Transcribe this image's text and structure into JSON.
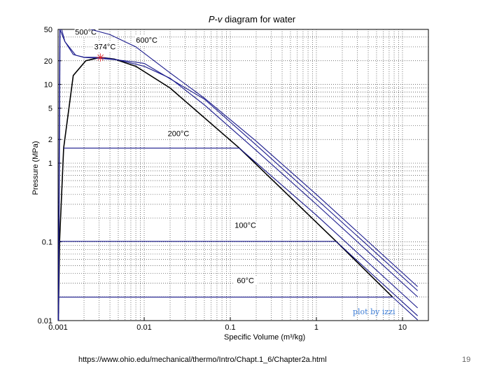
{
  "chart_data": {
    "type": "line",
    "title": "P-v diagram for water",
    "xlabel": "Specific Volume (m³/kg)",
    "ylabel": "Pressure (MPa)",
    "x_scale": "log",
    "y_scale": "log",
    "xlim": [
      0.001,
      20
    ],
    "ylim": [
      0.01,
      50
    ],
    "x_ticks": [
      {
        "value": 0.001,
        "label": "0.001"
      },
      {
        "value": 0.01,
        "label": "0.01"
      },
      {
        "value": 0.1,
        "label": "0.1"
      },
      {
        "value": 1,
        "label": "1"
      },
      {
        "value": 10,
        "label": "10"
      }
    ],
    "y_ticks": [
      {
        "value": 0.01,
        "label": "0.01"
      },
      {
        "value": 0.1,
        "label": "0.1"
      },
      {
        "value": 1,
        "label": "1"
      },
      {
        "value": 2,
        "label": "2"
      },
      {
        "value": 5,
        "label": "5"
      },
      {
        "value": 10,
        "label": "10"
      },
      {
        "value": 20,
        "label": "20"
      },
      {
        "value": 50,
        "label": "50"
      }
    ],
    "grid": true,
    "series": [
      {
        "name": "60°C",
        "x": [
          0.00102,
          7.67,
          15.0
        ],
        "y": [
          0.0199,
          0.0199,
          0.0102
        ],
        "label_at": [
          0.15,
          0.03
        ]
      },
      {
        "name": "100°C",
        "x": [
          0.00104,
          1.694,
          15.0
        ],
        "y": [
          0.1014,
          0.1014,
          0.0115
        ],
        "label_at": [
          0.15,
          0.15
        ]
      },
      {
        "name": "200°C",
        "x": [
          0.00116,
          0.1274,
          1.0,
          15.0
        ],
        "y": [
          1.554,
          1.554,
          0.218,
          0.0145
        ],
        "label_at": [
          0.025,
          2.2
        ]
      },
      {
        "name": "374°C",
        "x": [
          0.00105,
          0.0012,
          0.0016,
          0.002,
          0.00311,
          0.005,
          0.01,
          0.02,
          0.05,
          0.2,
          1.0,
          15.0
        ],
        "y": [
          50,
          35,
          23.5,
          22.2,
          22.06,
          20.5,
          17.0,
          12.0,
          5.5,
          1.45,
          0.3,
          0.02
        ],
        "label_at": [
          0.0035,
          28
        ]
      },
      {
        "name": "500°C",
        "x": [
          0.0011,
          0.0012,
          0.0015,
          0.002,
          0.003,
          0.006,
          0.01,
          0.05,
          0.2,
          1.0,
          15.0
        ],
        "y": [
          50,
          35,
          24,
          22.0,
          21.5,
          20.0,
          18.5,
          6.5,
          1.7,
          0.35,
          0.024
        ],
        "label_at": [
          0.0021,
          43
        ]
      },
      {
        "name": "600°C",
        "x": [
          0.0024,
          0.004,
          0.008,
          0.02,
          0.05,
          0.2,
          1.0,
          15.0
        ],
        "y": [
          50,
          43,
          30,
          14,
          6.7,
          1.9,
          0.4,
          0.027
        ],
        "label_at": [
          0.0107,
          34
        ]
      }
    ],
    "saturation_dome": {
      "x": [
        0.00101,
        0.00104,
        0.00116,
        0.0015,
        0.0021,
        0.00311,
        0.0045,
        0.008,
        0.02,
        0.1274,
        1.694,
        7.67
      ],
      "y": [
        0.0123,
        0.1014,
        1.554,
        13.0,
        20.0,
        22.06,
        21.0,
        17.0,
        9.0,
        1.554,
        0.1014,
        0.0199
      ]
    },
    "critical_point": {
      "x": 0.00311,
      "y": 22.06,
      "marker": "*",
      "color": "#e02020"
    }
  },
  "colors": {
    "curve": "#1a1a8c",
    "dome": "#000000",
    "grid": "#444444",
    "critical": "#e02020",
    "credit": "#3a7bd5"
  },
  "annotations": {
    "credit": "plot by izzi",
    "source": "https://www.ohio.edu/mechanical/thermo/Intro/Chapt.1_6/Chapter2a.html",
    "page_number": "19"
  }
}
